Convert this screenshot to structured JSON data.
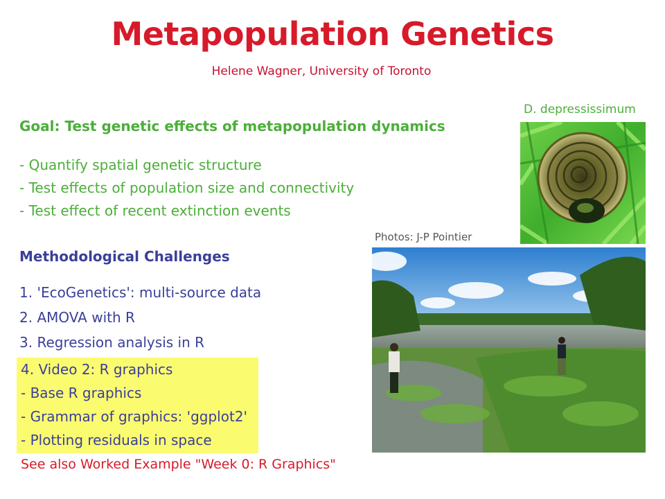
{
  "slide": {
    "title": "Metapopulation Genetics",
    "author": "Helene Wagner, University of Toronto",
    "goal": "Goal: Test genetic effects of metapopulation dynamics",
    "goal_items": [
      "- Quantify spatial genetic structure",
      "- Test effects of population size and connectivity",
      "- Test effect of recent extinction events"
    ],
    "photo_caption": "D. depressissimum",
    "photo_credit": "Photos: J-P Pointier",
    "methods_title": "Methodological Challenges",
    "methods_items": [
      "1. 'EcoGenetics': multi-source data",
      "2. AMOVA with R",
      "3. Regression analysis in R"
    ],
    "highlight_items": [
      "4. Video 2: R graphics",
      "-  Base R graphics",
      "-  Grammar of graphics: 'ggplot2'",
      "-  Plotting residuals in space"
    ],
    "see_also": "See also Worked Example \"Week 0: R Graphics\""
  },
  "colors": {
    "title_red": "#d71a2a",
    "goal_green": "#4cae3a",
    "method_blue": "#3a3f99",
    "highlight_yellow": "#fbfb70"
  }
}
